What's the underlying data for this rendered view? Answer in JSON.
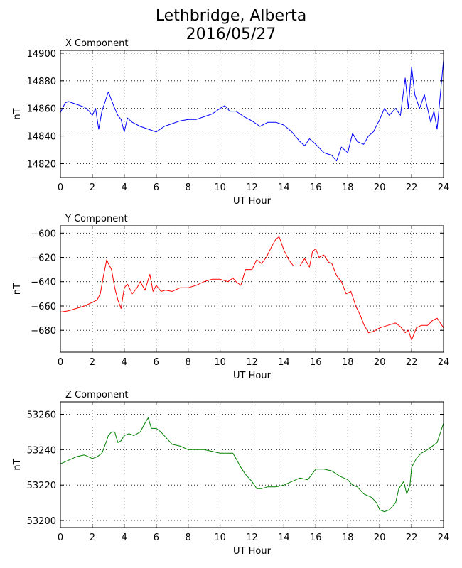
{
  "title_line1": "Lethbridge, Alberta",
  "title_line2": "2016/05/27",
  "chart_data": [
    {
      "type": "line",
      "title": "X Component",
      "xlabel": "UT Hour",
      "ylabel": "nT",
      "xlim": [
        0,
        24
      ],
      "ylim": [
        14810,
        14902
      ],
      "xticks": [
        0,
        2,
        4,
        6,
        8,
        10,
        12,
        14,
        16,
        18,
        20,
        22,
        24
      ],
      "yticks": [
        14820,
        14840,
        14860,
        14880,
        14900
      ],
      "grid": true,
      "color": "#0000ff",
      "x": [
        0,
        0.3,
        0.5,
        1.0,
        1.5,
        1.8,
        2.0,
        2.2,
        2.4,
        2.6,
        2.8,
        3.0,
        3.2,
        3.4,
        3.6,
        3.8,
        4.0,
        4.2,
        4.5,
        5.0,
        5.5,
        6.0,
        6.5,
        7.0,
        7.5,
        8.0,
        8.5,
        9.0,
        9.5,
        10.0,
        10.3,
        10.6,
        11.0,
        11.5,
        12.0,
        12.5,
        13.0,
        13.5,
        14.0,
        14.5,
        15.0,
        15.3,
        15.6,
        16.0,
        16.5,
        17.0,
        17.3,
        17.6,
        18.0,
        18.3,
        18.6,
        19.0,
        19.3,
        19.6,
        20.0,
        20.3,
        20.6,
        21.0,
        21.3,
        21.6,
        21.8,
        22.0,
        22.2,
        22.5,
        22.8,
        23.0,
        23.2,
        23.4,
        23.6,
        23.8,
        24.0
      ],
      "y": [
        14857,
        14864,
        14865,
        14863,
        14861,
        14858,
        14855,
        14860,
        14845,
        14858,
        14865,
        14872,
        14866,
        14860,
        14855,
        14852,
        14843,
        14853,
        14850,
        14847,
        14845,
        14843,
        14847,
        14849,
        14851,
        14852,
        14852,
        14854,
        14856,
        14860,
        14862,
        14858,
        14858,
        14854,
        14851,
        14847,
        14850,
        14850,
        14848,
        14843,
        14836,
        14833,
        14838,
        14834,
        14828,
        14826,
        14822,
        14832,
        14828,
        14842,
        14836,
        14834,
        14840,
        14843,
        14852,
        14860,
        14855,
        14860,
        14855,
        14882,
        14860,
        14890,
        14870,
        14860,
        14870,
        14860,
        14850,
        14858,
        14845,
        14870,
        14895
      ]
    },
    {
      "type": "line",
      "title": "Y Component",
      "xlabel": "UT Hour",
      "ylabel": "nT",
      "xlim": [
        0,
        24
      ],
      "ylim": [
        -698,
        -594
      ],
      "xticks": [
        0,
        2,
        4,
        6,
        8,
        10,
        12,
        14,
        16,
        18,
        20,
        22,
        24
      ],
      "yticks": [
        -680,
        -660,
        -640,
        -620,
        -600
      ],
      "grid": true,
      "color": "#ff0000",
      "x": [
        0,
        0.5,
        1.0,
        1.5,
        2.0,
        2.3,
        2.5,
        2.7,
        2.9,
        3.0,
        3.2,
        3.4,
        3.6,
        3.8,
        4.0,
        4.2,
        4.5,
        4.8,
        5.0,
        5.3,
        5.6,
        5.8,
        6.0,
        6.3,
        6.6,
        7.0,
        7.5,
        8.0,
        8.5,
        9.0,
        9.5,
        10.0,
        10.5,
        10.8,
        11.0,
        11.3,
        11.6,
        12.0,
        12.3,
        12.6,
        12.9,
        13.2,
        13.5,
        13.7,
        14.0,
        14.3,
        14.6,
        15.0,
        15.3,
        15.6,
        15.8,
        16.0,
        16.2,
        16.5,
        16.8,
        17.0,
        17.3,
        17.6,
        17.9,
        18.2,
        18.5,
        18.8,
        19.0,
        19.3,
        19.6,
        20.0,
        20.5,
        21.0,
        21.3,
        21.6,
        21.8,
        22.0,
        22.3,
        22.6,
        23.0,
        23.3,
        23.6,
        24.0
      ],
      "y": [
        -665,
        -664,
        -662,
        -660,
        -657,
        -655,
        -650,
        -635,
        -622,
        -625,
        -630,
        -645,
        -655,
        -662,
        -645,
        -642,
        -650,
        -645,
        -640,
        -647,
        -634,
        -648,
        -643,
        -648,
        -647,
        -648,
        -645,
        -645,
        -643,
        -640,
        -638,
        -638,
        -640,
        -637,
        -640,
        -643,
        -630,
        -630,
        -622,
        -625,
        -620,
        -612,
        -605,
        -603,
        -614,
        -622,
        -627,
        -627,
        -621,
        -628,
        -615,
        -613,
        -620,
        -618,
        -624,
        -625,
        -635,
        -640,
        -650,
        -648,
        -660,
        -668,
        -675,
        -682,
        -681,
        -678,
        -676,
        -674,
        -677,
        -682,
        -680,
        -688,
        -678,
        -676,
        -676,
        -672,
        -670,
        -678
      ]
    },
    {
      "type": "line",
      "title": "Z Component",
      "xlabel": "UT Hour",
      "ylabel": "nT",
      "xlim": [
        0,
        24
      ],
      "ylim": [
        53196,
        53267
      ],
      "xticks": [
        0,
        2,
        4,
        6,
        8,
        10,
        12,
        14,
        16,
        18,
        20,
        22,
        24
      ],
      "yticks": [
        53200,
        53220,
        53240,
        53260
      ],
      "grid": true,
      "color": "#008000",
      "x": [
        0,
        0.5,
        1.0,
        1.5,
        2.0,
        2.3,
        2.6,
        2.9,
        3.0,
        3.2,
        3.4,
        3.6,
        3.8,
        4.0,
        4.3,
        4.6,
        5.0,
        5.3,
        5.5,
        5.7,
        6.0,
        6.3,
        6.6,
        7.0,
        7.5,
        8.0,
        8.5,
        9.0,
        9.5,
        10.0,
        10.5,
        10.8,
        11.0,
        11.3,
        11.6,
        12.0,
        12.3,
        12.6,
        13.0,
        13.5,
        14.0,
        14.5,
        15.0,
        15.5,
        16.0,
        16.5,
        17.0,
        17.5,
        18.0,
        18.3,
        18.6,
        19.0,
        19.5,
        19.8,
        20.0,
        20.3,
        20.6,
        21.0,
        21.2,
        21.5,
        21.7,
        21.9,
        22.0,
        22.3,
        22.6,
        23.0,
        23.3,
        23.6,
        24.0
      ],
      "y": [
        53232,
        53234,
        53236,
        53237,
        53235,
        53236,
        53238,
        53245,
        53248,
        53250,
        53250,
        53244,
        53245,
        53248,
        53249,
        53248,
        53250,
        53255,
        53258,
        53252,
        53252,
        53250,
        53247,
        53243,
        53242,
        53240,
        53240,
        53240,
        53239,
        53238,
        53238,
        53238,
        53235,
        53230,
        53226,
        53222,
        53218,
        53218,
        53219,
        53219,
        53220,
        53222,
        53224,
        53223,
        53229,
        53229,
        53228,
        53225,
        53223,
        53220,
        53219,
        53215,
        53213,
        53210,
        53206,
        53205,
        53206,
        53210,
        53218,
        53222,
        53215,
        53220,
        53230,
        53235,
        53238,
        53240,
        53242,
        53244,
        53255
      ]
    }
  ]
}
